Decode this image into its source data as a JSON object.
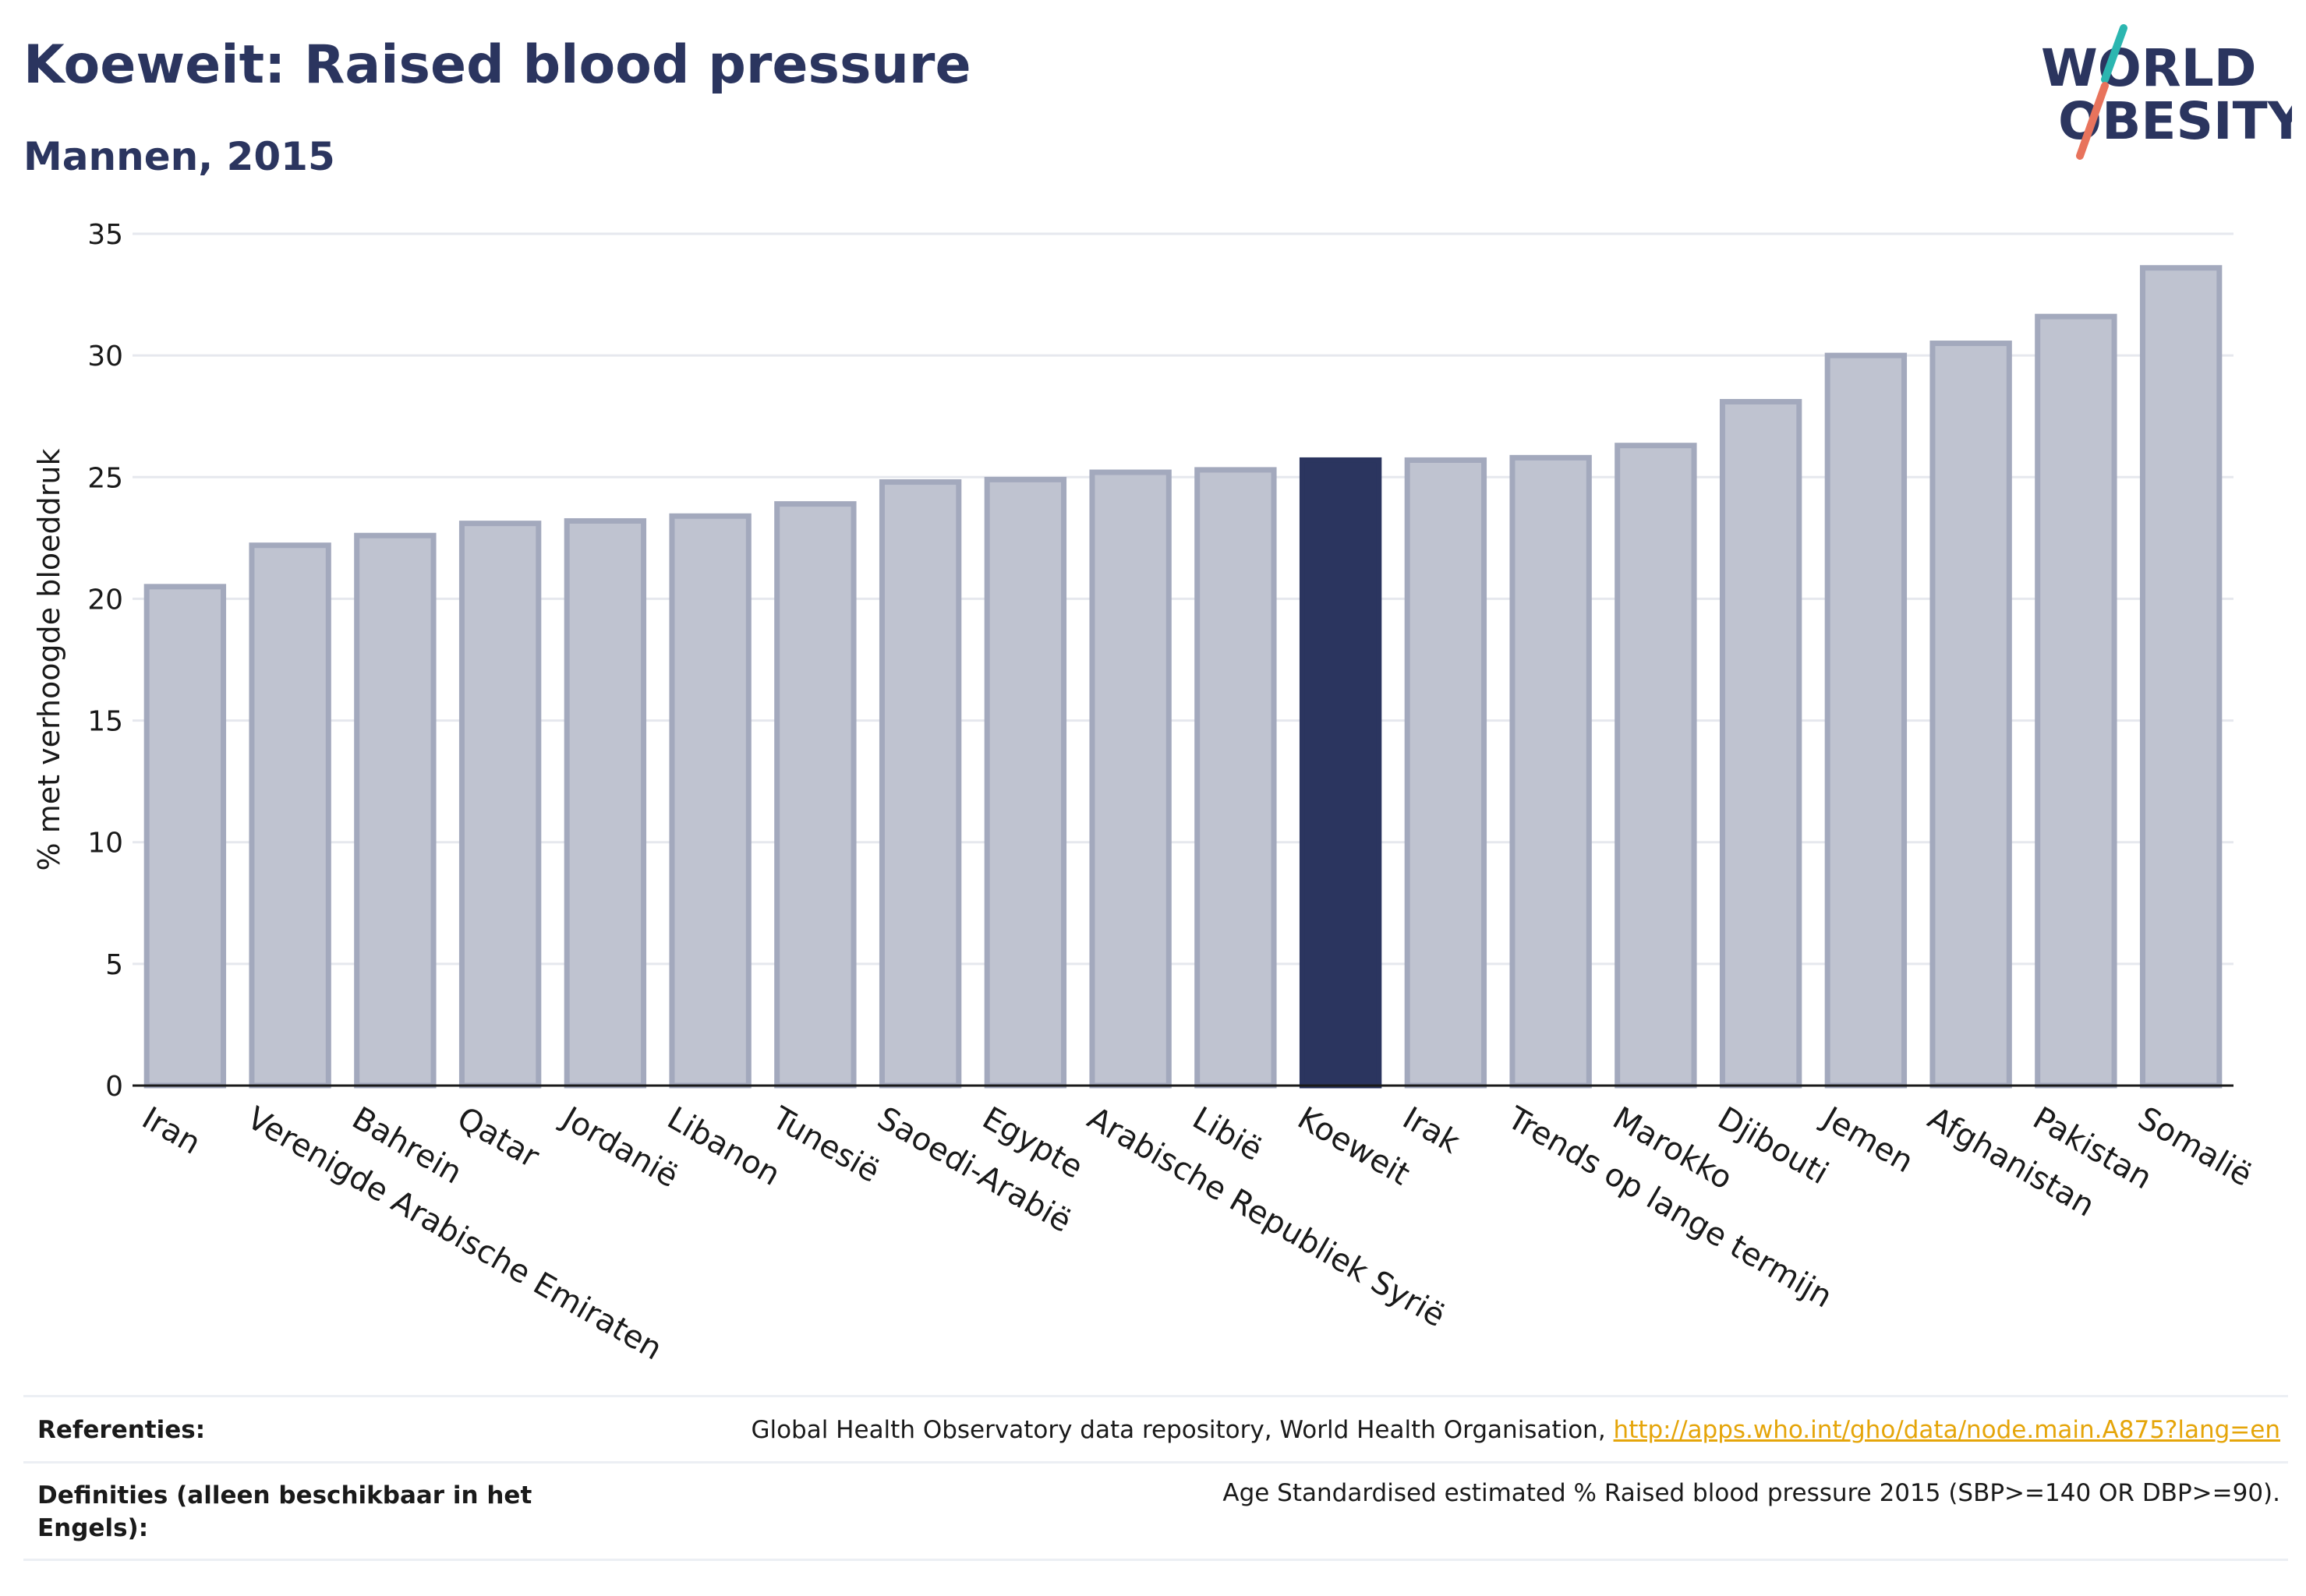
{
  "header": {
    "title": "Koeweit: Raised blood pressure",
    "subtitle": "Mannen, 2015"
  },
  "logo": {
    "line1": "WORLD",
    "line2": "OBESITY"
  },
  "chart_data": {
    "type": "bar",
    "ylabel": "% met verhoogde bloeddruk",
    "ylim": [
      0,
      35
    ],
    "yticks": [
      0,
      5,
      10,
      15,
      20,
      25,
      30,
      35
    ],
    "grid": true,
    "highlight": "Koeweit",
    "categories": [
      "Iran",
      "Verenigde Arabische Emiraten",
      "Bahrein",
      "Qatar",
      "Jordanië",
      "Libanon",
      "Tunesië",
      "Saoedi-Arabië",
      "Egypte",
      "Arabische Republiek Syrië",
      "Libië",
      "Koeweit",
      "Irak",
      "Trends op lange termijn",
      "Marokko",
      "Djibouti",
      "Jemen",
      "Afghanistan",
      "Pakistan",
      "Somalië"
    ],
    "values": [
      20.5,
      22.2,
      22.6,
      23.1,
      23.2,
      23.4,
      23.9,
      24.8,
      24.9,
      25.2,
      25.3,
      25.7,
      25.7,
      25.8,
      26.3,
      28.1,
      30.0,
      30.5,
      31.6,
      33.6
    ],
    "colors": {
      "bar": "#bfc3d0",
      "bar_outline": "#a3a9bd",
      "highlight": "#2b355f"
    }
  },
  "footer": {
    "ref_label": "Referenties:",
    "ref_text": "Global Health Observatory data repository, World Health Organisation, ",
    "ref_link": "http://apps.who.int/gho/data/node.main.A875?lang=en",
    "def_label": "Definities (alleen beschikbaar in het Engels):",
    "def_text": "Age Standardised estimated % Raised blood pressure 2015 (SBP>=140 OR DBP>=90)."
  }
}
